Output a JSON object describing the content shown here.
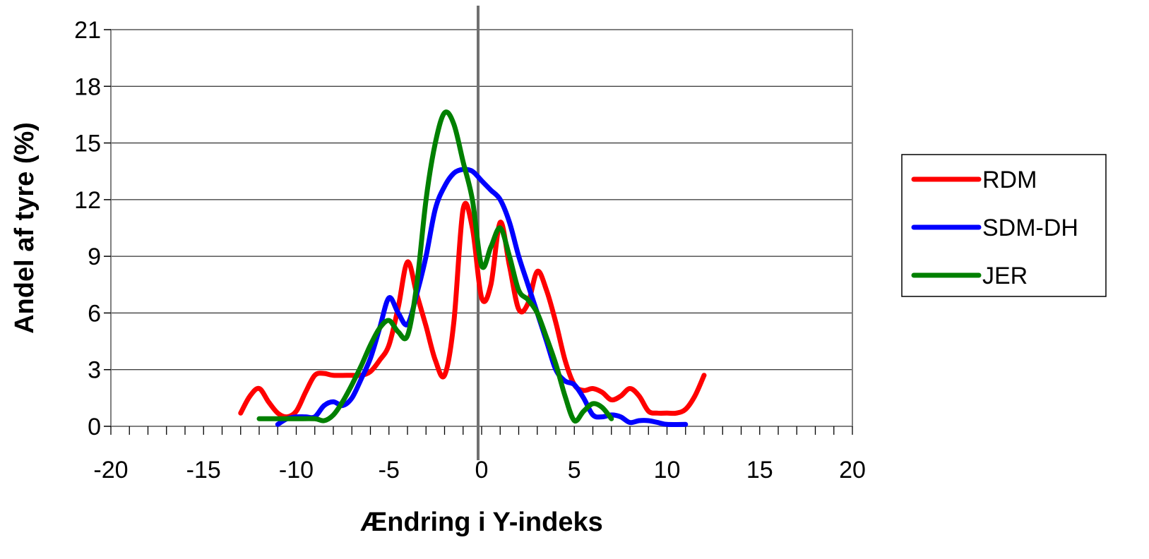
{
  "chart_data": {
    "type": "line",
    "xlabel": "Ændring i Y-indeks",
    "ylabel": "Andel af tyre (%)",
    "xlim": [
      -20,
      20
    ],
    "ylim": [
      0,
      21
    ],
    "x_ticks": [
      "-20",
      "-15",
      "-10",
      "-5",
      "0",
      "5",
      "10",
      "15",
      "20"
    ],
    "y_ticks": [
      "0",
      "3",
      "6",
      "9",
      "12",
      "15",
      "18",
      "21"
    ],
    "grid": "horizontal",
    "vertical_reference_line_x": 0,
    "legend_position": "right",
    "series": [
      {
        "name": "RDM",
        "color": "#ff0000",
        "points": [
          [
            -13,
            0.7
          ],
          [
            -12.5,
            1.6
          ],
          [
            -12,
            2.0
          ],
          [
            -11.5,
            1.3
          ],
          [
            -11,
            0.7
          ],
          [
            -10.5,
            0.5
          ],
          [
            -10,
            0.8
          ],
          [
            -9.5,
            1.8
          ],
          [
            -9,
            2.7
          ],
          [
            -8.5,
            2.8
          ],
          [
            -8,
            2.7
          ],
          [
            -7,
            2.7
          ],
          [
            -6.5,
            2.7
          ],
          [
            -6,
            2.9
          ],
          [
            -5.5,
            3.5
          ],
          [
            -5,
            4.3
          ],
          [
            -4.5,
            6.3
          ],
          [
            -4,
            8.7
          ],
          [
            -3.5,
            7.0
          ],
          [
            -3,
            5.3
          ],
          [
            -2.5,
            3.5
          ],
          [
            -2,
            2.7
          ],
          [
            -1.5,
            5.5
          ],
          [
            -1,
            11.5
          ],
          [
            -0.5,
            10.5
          ],
          [
            0,
            6.8
          ],
          [
            0.5,
            7.5
          ],
          [
            1,
            10.8
          ],
          [
            1.5,
            8.5
          ],
          [
            2,
            6.2
          ],
          [
            2.5,
            6.5
          ],
          [
            3,
            8.2
          ],
          [
            3.5,
            7.2
          ],
          [
            4,
            5.5
          ],
          [
            4.5,
            3.5
          ],
          [
            5,
            2.2
          ],
          [
            5.5,
            1.9
          ],
          [
            6,
            2.0
          ],
          [
            6.5,
            1.8
          ],
          [
            7,
            1.4
          ],
          [
            7.5,
            1.6
          ],
          [
            8,
            2.0
          ],
          [
            8.5,
            1.6
          ],
          [
            9,
            0.8
          ],
          [
            9.5,
            0.7
          ],
          [
            10,
            0.7
          ],
          [
            10.5,
            0.7
          ],
          [
            11,
            0.9
          ],
          [
            11.5,
            1.6
          ],
          [
            12,
            2.7
          ]
        ]
      },
      {
        "name": "SDM-DH",
        "color": "#0000ff",
        "points": [
          [
            -11,
            0.1
          ],
          [
            -10.5,
            0.4
          ],
          [
            -10,
            0.5
          ],
          [
            -9.5,
            0.5
          ],
          [
            -9,
            0.5
          ],
          [
            -8.5,
            1.1
          ],
          [
            -8,
            1.3
          ],
          [
            -7.5,
            1.1
          ],
          [
            -7,
            1.5
          ],
          [
            -6.5,
            2.5
          ],
          [
            -6,
            3.6
          ],
          [
            -5.5,
            5.2
          ],
          [
            -5,
            6.8
          ],
          [
            -4.5,
            6.0
          ],
          [
            -4,
            5.4
          ],
          [
            -3.5,
            7.0
          ],
          [
            -3,
            9.0
          ],
          [
            -2.5,
            11.5
          ],
          [
            -2,
            12.7
          ],
          [
            -1.5,
            13.4
          ],
          [
            -1,
            13.6
          ],
          [
            -0.5,
            13.5
          ],
          [
            0,
            13.0
          ],
          [
            0.5,
            12.5
          ],
          [
            1,
            12.0
          ],
          [
            1.5,
            10.8
          ],
          [
            2,
            9.0
          ],
          [
            2.5,
            7.5
          ],
          [
            3,
            6.0
          ],
          [
            3.5,
            4.5
          ],
          [
            4,
            3.0
          ],
          [
            4.5,
            2.4
          ],
          [
            5,
            2.2
          ],
          [
            5.5,
            1.5
          ],
          [
            6,
            0.6
          ],
          [
            6.5,
            0.5
          ],
          [
            7,
            0.6
          ],
          [
            7.5,
            0.5
          ],
          [
            8,
            0.2
          ],
          [
            8.5,
            0.3
          ],
          [
            9,
            0.3
          ],
          [
            9.5,
            0.2
          ],
          [
            10,
            0.1
          ],
          [
            11,
            0.1
          ]
        ]
      },
      {
        "name": "JER",
        "color": "#008000",
        "points": [
          [
            -12,
            0.4
          ],
          [
            -11,
            0.4
          ],
          [
            -10,
            0.4
          ],
          [
            -9,
            0.4
          ],
          [
            -8.5,
            0.3
          ],
          [
            -8,
            0.6
          ],
          [
            -7.5,
            1.3
          ],
          [
            -7,
            2.2
          ],
          [
            -6.5,
            3.2
          ],
          [
            -6,
            4.3
          ],
          [
            -5.5,
            5.2
          ],
          [
            -5,
            5.6
          ],
          [
            -4.5,
            5.0
          ],
          [
            -4,
            4.8
          ],
          [
            -3.5,
            7.5
          ],
          [
            -3,
            12.0
          ],
          [
            -2.5,
            15.0
          ],
          [
            -2,
            16.6
          ],
          [
            -1.5,
            16.0
          ],
          [
            -1,
            14.0
          ],
          [
            -0.5,
            12.0
          ],
          [
            0,
            8.5
          ],
          [
            0.5,
            9.5
          ],
          [
            1,
            10.5
          ],
          [
            1.5,
            9.0
          ],
          [
            2,
            7.2
          ],
          [
            2.5,
            6.7
          ],
          [
            3,
            6.0
          ],
          [
            3.5,
            4.7
          ],
          [
            4,
            3.3
          ],
          [
            4.5,
            1.6
          ],
          [
            5,
            0.3
          ],
          [
            5.5,
            0.8
          ],
          [
            6,
            1.2
          ],
          [
            6.5,
            1.0
          ],
          [
            7,
            0.4
          ]
        ]
      }
    ]
  }
}
